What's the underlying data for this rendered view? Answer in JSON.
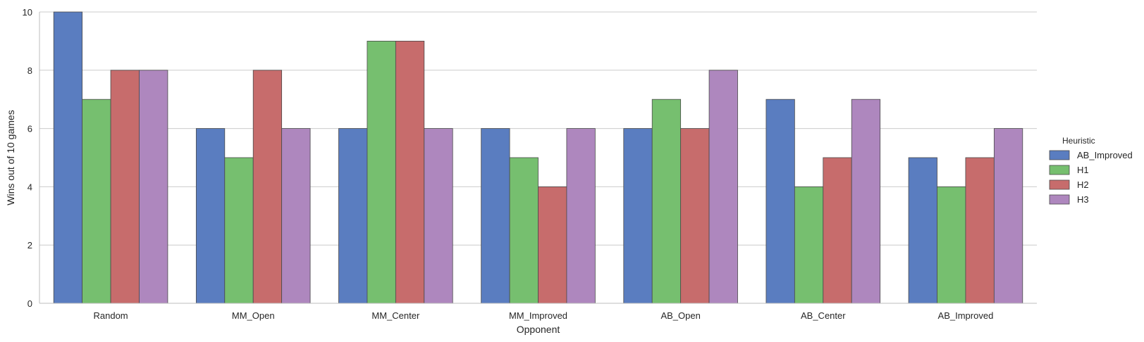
{
  "chart_data": {
    "type": "bar",
    "xlabel": "Opponent",
    "ylabel": "Wins out of 10 games",
    "ylim": [
      0,
      10
    ],
    "yticks": [
      0,
      2,
      4,
      6,
      8,
      10
    ],
    "grid": "horizontal",
    "categories": [
      "Random",
      "MM_Open",
      "MM_Center",
      "MM_Improved",
      "AB_Open",
      "AB_Center",
      "AB_Improved"
    ],
    "legend": {
      "title": "Heuristic",
      "placement": "right"
    },
    "series": [
      {
        "name": "AB_Improved",
        "color": "#5a7dc0",
        "values": [
          10,
          6,
          6,
          6,
          6,
          7,
          5
        ]
      },
      {
        "name": "H1",
        "color": "#76bf6f",
        "values": [
          7,
          5,
          9,
          5,
          7,
          4,
          4
        ]
      },
      {
        "name": "H2",
        "color": "#c76c6c",
        "values": [
          8,
          8,
          9,
          4,
          6,
          5,
          5
        ]
      },
      {
        "name": "H3",
        "color": "#ae87be",
        "values": [
          8,
          6,
          6,
          6,
          8,
          7,
          6
        ]
      }
    ]
  }
}
